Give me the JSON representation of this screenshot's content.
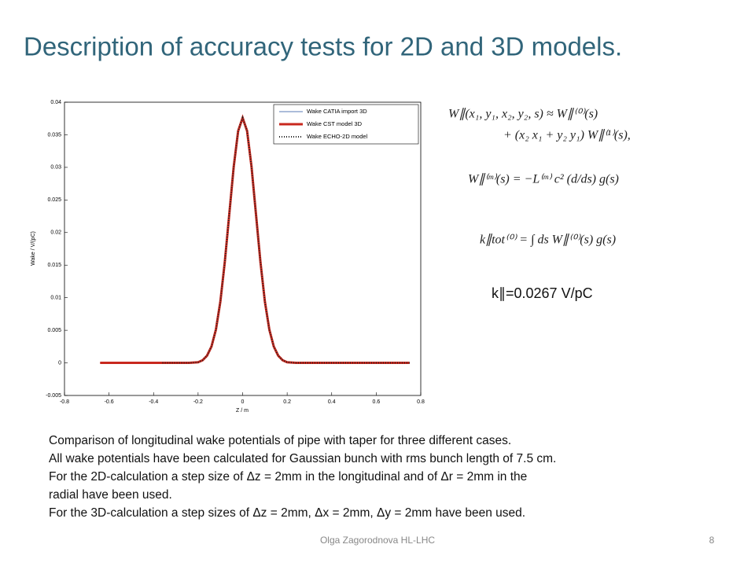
{
  "title": "Description of accuracy tests for 2D and 3D models.",
  "chart_data": {
    "type": "line",
    "xlabel": "Z / m",
    "ylabel": "Wake / V/(pC)",
    "x": [
      -0.64,
      -0.56,
      -0.48,
      -0.4,
      -0.36,
      -0.32,
      -0.28,
      -0.24,
      -0.2,
      -0.18,
      -0.16,
      -0.14,
      -0.12,
      -0.1,
      -0.08,
      -0.06,
      -0.04,
      -0.02,
      0,
      0.02,
      0.04,
      0.06,
      0.08,
      0.1,
      0.12,
      0.14,
      0.16,
      0.18,
      0.2,
      0.24,
      0.28,
      0.32,
      0.36,
      0.4,
      0.48,
      0.56,
      0.64,
      0.75
    ],
    "series": [
      {
        "name": "Wake CATIA import 3D",
        "color": "#5a78b4",
        "style": "solid",
        "width": 1,
        "values": [
          0,
          0,
          0,
          0,
          0,
          0,
          0,
          0,
          0.0001,
          0.0004,
          0.0011,
          0.0025,
          0.0051,
          0.0094,
          0.0155,
          0.0228,
          0.0301,
          0.0356,
          0.0376,
          0.0356,
          0.0301,
          0.0228,
          0.0155,
          0.0094,
          0.0051,
          0.0025,
          0.0011,
          0.0004,
          0.0001,
          0,
          0,
          0,
          0,
          0,
          0,
          0,
          0,
          0
        ]
      },
      {
        "name": "Wake CST model 3D",
        "color": "#c8281e",
        "style": "solid",
        "width": 3,
        "values": [
          0,
          0,
          0,
          0,
          0,
          0,
          0,
          0,
          0.0001,
          0.0004,
          0.0011,
          0.0025,
          0.0051,
          0.0094,
          0.0155,
          0.0228,
          0.0301,
          0.0356,
          0.0376,
          0.0356,
          0.0301,
          0.0228,
          0.0155,
          0.0094,
          0.0051,
          0.0025,
          0.0011,
          0.0004,
          0.0001,
          0,
          0,
          0,
          0,
          0,
          0,
          0,
          0,
          0
        ]
      },
      {
        "name": "Wake ECHO-2D model",
        "color": "#222222",
        "style": "dotted",
        "width": 2,
        "values": [
          null,
          null,
          null,
          null,
          0,
          0,
          0,
          0,
          0.0001,
          0.0004,
          0.0011,
          0.0025,
          0.0051,
          0.0094,
          0.0155,
          0.0228,
          0.0301,
          0.0356,
          0.0376,
          0.0356,
          0.0301,
          0.0228,
          0.0155,
          0.0094,
          0.0051,
          0.0025,
          0.0011,
          0.0004,
          0.0001,
          0,
          0,
          0,
          0,
          0,
          0,
          0,
          0,
          0
        ]
      }
    ],
    "xlim": [
      -0.8,
      0.8
    ],
    "xticks": [
      -0.8,
      -0.6,
      -0.4,
      -0.2,
      0,
      0.2,
      0.4,
      0.6,
      0.8
    ],
    "ylim": [
      -0.005,
      0.04
    ],
    "yticks": [
      -0.005,
      0,
      0.005,
      0.01,
      0.015,
      0.02,
      0.025,
      0.03,
      0.035,
      0.04
    ],
    "legend": "upper-right"
  },
  "equations": [
    "W∥(x₁, y₁, x₂, y₂, s)  ≈  W∥⁽⁰⁾(s)",
    "+ (x₂ x₁ + y₂ y₁) W∥⁽¹⁾(s),",
    "W∥⁽ᵐ⁾(s) = −L⁽ᵐ⁾ c² (d/ds) g(s)",
    "k∥tot⁽⁰⁾ = ∫ ds W∥⁽⁰⁾(s) g(s)"
  ],
  "loss_factor": "k∥=0.0267 V/pC",
  "text": [
    "Comparison of longitudinal wake potentials of pipe with taper for three different cases.",
    "All wake potentials have been calculated for Gaussian bunch with rms bunch length of 7.5 cm.",
    "For the 2D-calculation a step size of Δz = 2mm in the longitudinal and of Δr = 2mm in the",
    "radial have been used.",
    "For the 3D-calculation a step sizes of Δz = 2mm, Δx = 2mm, Δy = 2mm have been used."
  ],
  "footer": "Olga Zagorodnova HL-LHC",
  "page": "8"
}
